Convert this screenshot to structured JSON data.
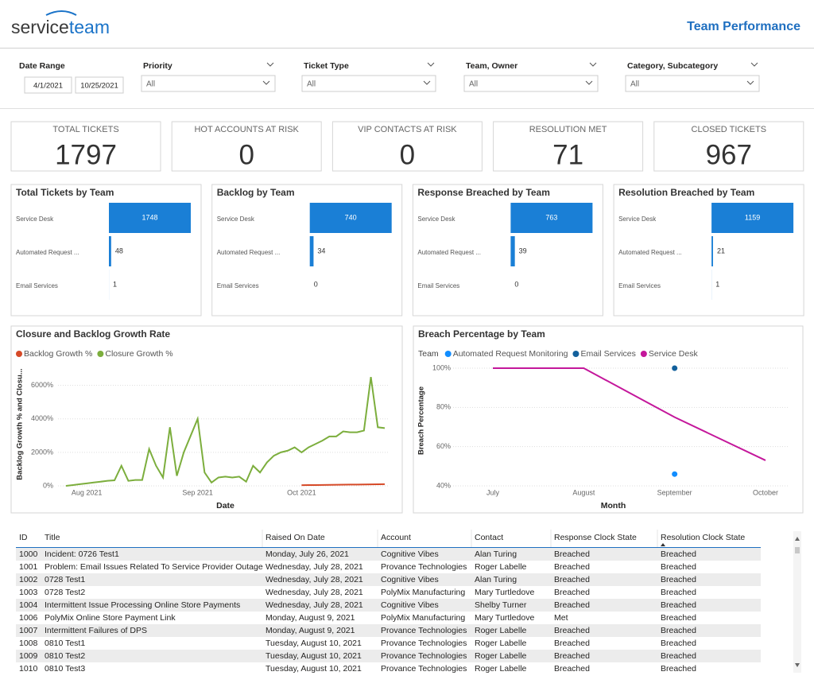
{
  "header": {
    "logo": [
      "service",
      "team"
    ],
    "title": "Team Performance"
  },
  "filters": {
    "date_range": {
      "label": "Date Range",
      "start": "4/1/2021",
      "end": "10/25/2021"
    },
    "dropdowns": [
      {
        "label": "Priority",
        "value": "All"
      },
      {
        "label": "Ticket Type",
        "value": "All"
      },
      {
        "label": "Team, Owner",
        "value": "All"
      },
      {
        "label": "Category, Subcategory",
        "value": "All"
      }
    ]
  },
  "kpis": [
    {
      "label": "TOTAL TICKETS",
      "value": 1797
    },
    {
      "label": "HOT ACCOUNTS AT RISK",
      "value": 0
    },
    {
      "label": "VIP CONTACTS AT RISK",
      "value": 0
    },
    {
      "label": "RESOLUTION MET",
      "value": 71
    },
    {
      "label": "CLOSED TICKETS",
      "value": 967
    }
  ],
  "chart_data": [
    {
      "type": "bar",
      "title": "Total Tickets by Team",
      "categories": [
        "Service Desk",
        "Automated Request ...",
        "Email Services"
      ],
      "values": [
        1748,
        48,
        1
      ],
      "color": "#1a7fd6",
      "xlim": [
        0,
        1748
      ]
    },
    {
      "type": "bar",
      "title": "Backlog by Team",
      "categories": [
        "Service Desk",
        "Automated Request ...",
        "Email Services"
      ],
      "values": [
        740,
        34,
        0
      ],
      "color": "#1a7fd6",
      "xlim": [
        0,
        740
      ]
    },
    {
      "type": "bar",
      "title": "Response Breached by Team",
      "categories": [
        "Service Desk",
        "Automated Request ...",
        "Email Services"
      ],
      "values": [
        763,
        39,
        0
      ],
      "color": "#1a7fd6",
      "xlim": [
        0,
        763
      ]
    },
    {
      "type": "bar",
      "title": "Resolution Breached by Team",
      "categories": [
        "Service Desk",
        "Automated Request ...",
        "Email Services"
      ],
      "values": [
        1159,
        21,
        1
      ],
      "color": "#1a7fd6",
      "xlim": [
        0,
        1159
      ]
    },
    {
      "type": "line",
      "title": "Closure and Backlog Growth Rate",
      "x_label": "Date",
      "y_label": "Backlog Growth % and Closu...",
      "categories": [
        null,
        null,
        null,
        "Aug 2021",
        null,
        null,
        null,
        null,
        null,
        null,
        null,
        null,
        null,
        null,
        null,
        null,
        null,
        null,
        null,
        "Sep 2021",
        null,
        null,
        null,
        null,
        null,
        null,
        null,
        null,
        null,
        null,
        null,
        null,
        null,
        null,
        "Oct 2021",
        null,
        null,
        null,
        null,
        null,
        null,
        null,
        null,
        null,
        null,
        null,
        null
      ],
      "series": [
        {
          "name": "Backlog Growth %",
          "color": "#d64a28",
          "values": [
            null,
            null,
            null,
            null,
            null,
            null,
            null,
            null,
            null,
            null,
            null,
            null,
            null,
            null,
            null,
            null,
            null,
            null,
            null,
            null,
            null,
            null,
            null,
            null,
            null,
            null,
            null,
            null,
            null,
            null,
            null,
            null,
            null,
            null,
            40,
            45,
            50,
            55,
            60,
            65,
            70,
            75,
            80,
            85,
            90,
            95,
            100
          ]
        },
        {
          "name": "Closure Growth %",
          "color": "#7cae3d",
          "values": [
            0,
            50,
            100,
            150,
            200,
            250,
            300,
            330,
            1200,
            300,
            350,
            350,
            2200,
            1200,
            500,
            3500,
            600,
            2000,
            3000,
            4000,
            800,
            200,
            500,
            550,
            500,
            550,
            250,
            1200,
            800,
            1400,
            1800,
            2000,
            2100,
            2300,
            2000,
            2300,
            2500,
            2700,
            2950,
            2950,
            3250,
            3200,
            3200,
            3300,
            6500,
            3500,
            3450
          ]
        }
      ],
      "ylim": [
        0,
        6600
      ],
      "yticks": [
        {
          "value": 0,
          "label": "0%"
        },
        {
          "value": 2000,
          "label": "2000%"
        },
        {
          "value": 4000,
          "label": "4000%"
        },
        {
          "value": 6000,
          "label": "6000%"
        }
      ],
      "grid": true,
      "legend": "top-left"
    },
    {
      "type": "line",
      "title": "Breach Percentage by Team",
      "x_label": "Month",
      "y_label": "Breach Percentage",
      "legend_title": "Team",
      "categories": [
        "July",
        "August",
        "September",
        "October"
      ],
      "series": [
        {
          "name": "Automated Request Monitoring",
          "color": "#118dff",
          "values": [
            null,
            null,
            46,
            null
          ]
        },
        {
          "name": "Email Services",
          "color": "#12609c",
          "values": [
            null,
            null,
            100,
            null
          ]
        },
        {
          "name": "Service Desk",
          "color": "#c4179b",
          "values": [
            100,
            100,
            75,
            53
          ]
        }
      ],
      "ylim": [
        40,
        100
      ],
      "yticks": [
        {
          "value": 40,
          "label": "40%"
        },
        {
          "value": 60,
          "label": "60%"
        },
        {
          "value": 80,
          "label": "80%"
        },
        {
          "value": 100,
          "label": "100%"
        }
      ],
      "grid": true,
      "legend": "top-left"
    }
  ],
  "table": {
    "columns": [
      "ID",
      "Title",
      "Raised On Date",
      "Account",
      "Contact",
      "Response Clock State",
      "Resolution Clock State"
    ],
    "rows": [
      [
        1000,
        "Incident: 0726 Test1",
        "Monday, July 26, 2021",
        "Cognitive Vibes",
        "Alan Turing",
        "Breached",
        "Breached"
      ],
      [
        1001,
        "Problem: Email Issues Related To Service Provider Outage",
        "Wednesday, July 28, 2021",
        "Provance Technologies",
        "Roger Labelle",
        "Breached",
        "Breached"
      ],
      [
        1002,
        "0728 Test1",
        "Wednesday, July 28, 2021",
        "Cognitive Vibes",
        "Alan Turing",
        "Breached",
        "Breached"
      ],
      [
        1003,
        "0728 Test2",
        "Wednesday, July 28, 2021",
        "PolyMix Manufacturing",
        "Mary Turtledove",
        "Breached",
        "Breached"
      ],
      [
        1004,
        "Intermittent Issue Processing Online Store Payments",
        "Wednesday, July 28, 2021",
        "Cognitive Vibes",
        "Shelby Turner",
        "Breached",
        "Breached"
      ],
      [
        1006,
        "PolyMix Online Store Payment Link",
        "Monday, August 9, 2021",
        "PolyMix Manufacturing",
        "Mary Turtledove",
        "Met",
        "Breached"
      ],
      [
        1007,
        "Intermittent Failures of DPS",
        "Monday, August 9, 2021",
        "Provance Technologies",
        "Roger Labelle",
        "Breached",
        "Breached"
      ],
      [
        1008,
        "0810 Test1",
        "Tuesday, August 10, 2021",
        "Provance Technologies",
        "Roger Labelle",
        "Breached",
        "Breached"
      ],
      [
        1009,
        "0810 Test2",
        "Tuesday, August 10, 2021",
        "Provance Technologies",
        "Roger Labelle",
        "Breached",
        "Breached"
      ],
      [
        1010,
        "0810 Test3",
        "Tuesday, August 10, 2021",
        "Provance Technologies",
        "Roger Labelle",
        "Breached",
        "Breached"
      ]
    ]
  }
}
